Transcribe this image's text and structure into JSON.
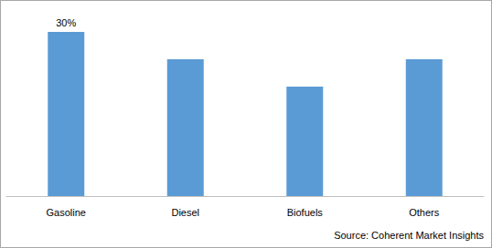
{
  "chart_data": {
    "type": "bar",
    "categories": [
      "Gasoline",
      "Diesel",
      "Biofuels",
      "Others"
    ],
    "values": [
      30,
      25,
      20,
      25
    ],
    "value_labels": [
      "30%",
      null,
      null,
      null
    ],
    "data_labels": true,
    "color": "#5b9bd5",
    "ylim": [
      0,
      30
    ],
    "yticks": [
      0,
      30
    ],
    "grid": false,
    "tick_labels": "x",
    "source": "Source: Coherent Market Insights"
  }
}
